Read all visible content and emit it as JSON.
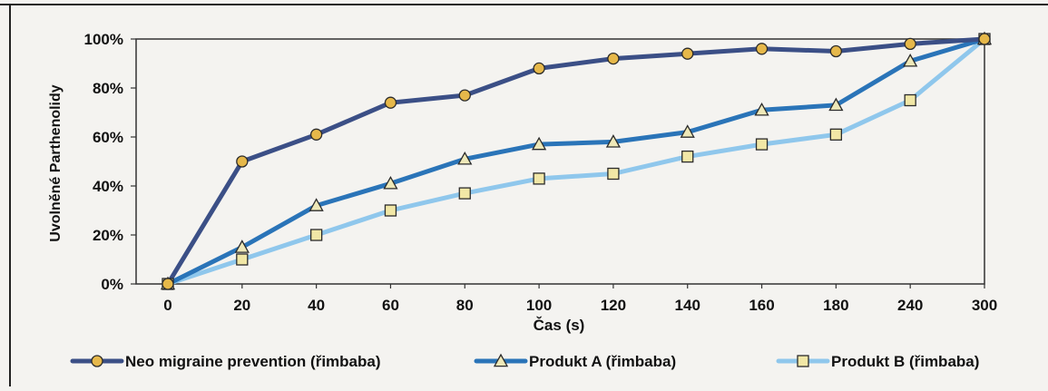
{
  "chart_data": {
    "type": "line",
    "title": "",
    "xlabel": "Čas (s)",
    "ylabel": "Uvolněné Parthenolidy",
    "categories": [
      "0",
      "20",
      "40",
      "60",
      "80",
      "100",
      "120",
      "140",
      "160",
      "180",
      "240",
      "300"
    ],
    "ylim": [
      0,
      100
    ],
    "yticks": [
      "0%",
      "20%",
      "40%",
      "60%",
      "80%",
      "100%"
    ],
    "grid": false,
    "legend": "bottom",
    "series": [
      {
        "name": "Neo migraine prevention (řimbaba)",
        "color": "#3b4f86",
        "marker": "circle",
        "marker_fill": "#e6b84a",
        "values": [
          0,
          50,
          61,
          74,
          77,
          88,
          92,
          94,
          96,
          95,
          98,
          100
        ]
      },
      {
        "name": "Produkt A (řimbaba)",
        "color": "#2a74b8",
        "marker": "triangle",
        "marker_fill": "#eee8b8",
        "values": [
          0,
          15,
          32,
          41,
          51,
          57,
          58,
          62,
          71,
          73,
          91,
          100
        ]
      },
      {
        "name": "Produkt B (řimbaba)",
        "color": "#8fc7ec",
        "marker": "square",
        "marker_fill": "#f1e7a6",
        "values": [
          0,
          10,
          20,
          30,
          37,
          43,
          45,
          52,
          57,
          61,
          75,
          100
        ]
      }
    ]
  }
}
